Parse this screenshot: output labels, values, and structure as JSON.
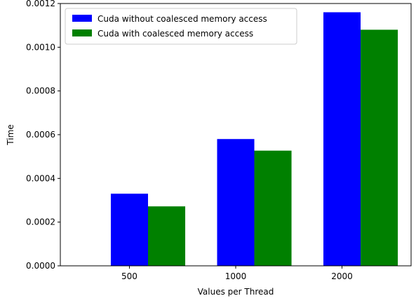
{
  "chart_data": {
    "type": "bar",
    "categories": [
      "500",
      "1000",
      "2000"
    ],
    "series": [
      {
        "name": "Cuda without coalesced memory access",
        "color": "#0000ff",
        "values": [
          0.00033,
          0.00058,
          0.00116
        ]
      },
      {
        "name": "Cuda with coalesced memory access",
        "color": "#008000",
        "values": [
          0.000272,
          0.000527,
          0.00108
        ]
      }
    ],
    "xlabel": "Values per Thread",
    "ylabel": "Time",
    "ylim": [
      0,
      0.0012
    ],
    "yticks": [
      "0.0000",
      "0.0002",
      "0.0004",
      "0.0006",
      "0.0008",
      "0.0010",
      "0.0012"
    ],
    "grid": false,
    "legend_position": "top-left"
  }
}
